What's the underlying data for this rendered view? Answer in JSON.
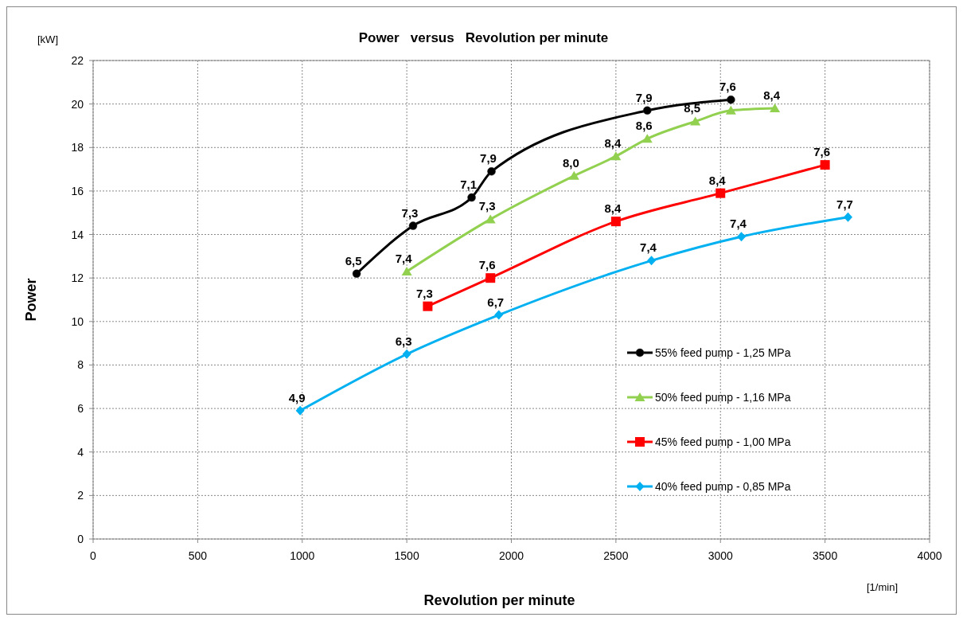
{
  "chart_data": {
    "type": "line",
    "title": "Power   versus   Revolution per minute",
    "xlabel": "Revolution per minute",
    "ylabel": "Power",
    "annotations": [
      "[kW]",
      "[1/min]",
      {
        "text": "6,5",
        "x": 1260,
        "y": 12.2
      },
      {
        "text": "7,3",
        "x": 1530,
        "y": 14.4
      },
      {
        "text": "7,1",
        "x": 1810,
        "y": 15.7
      },
      {
        "text": "7,9",
        "x": 1905,
        "y": 16.9
      },
      {
        "text": "7,9",
        "x": 2650,
        "y": 19.7
      },
      {
        "text": "7,6",
        "x": 3050,
        "y": 20.2
      },
      {
        "text": "7,4",
        "x": 1500,
        "y": 12.3
      },
      {
        "text": "7,3",
        "x": 1900,
        "y": 14.7
      },
      {
        "text": "8,0",
        "x": 2300,
        "y": 16.7
      },
      {
        "text": "8,4",
        "x": 2500,
        "y": 17.6
      },
      {
        "text": "8,6",
        "x": 2650,
        "y": 18.4
      },
      {
        "text": "8,5",
        "x": 2880,
        "y": 19.2
      },
      {
        "text": "8,4",
        "x": 3260,
        "y": 19.8
      },
      {
        "text": "7,3",
        "x": 1600,
        "y": 10.7
      },
      {
        "text": "7,6",
        "x": 1900,
        "y": 12.0
      },
      {
        "text": "8,4",
        "x": 2500,
        "y": 14.6
      },
      {
        "text": "8,4",
        "x": 3000,
        "y": 15.9
      },
      {
        "text": "7,6",
        "x": 3500,
        "y": 17.2
      },
      {
        "text": "4,9",
        "x": 990,
        "y": 5.9
      },
      {
        "text": "6,3",
        "x": 1500,
        "y": 8.5
      },
      {
        "text": "6,7",
        "x": 1940,
        "y": 10.3
      },
      {
        "text": "7,4",
        "x": 2670,
        "y": 12.8
      },
      {
        "text": "7,4",
        "x": 3100,
        "y": 13.9
      },
      {
        "text": "7,7",
        "x": 3610,
        "y": 14.8
      }
    ],
    "xlim": [
      0,
      4000
    ],
    "xticks": [
      0,
      500,
      1000,
      1500,
      2000,
      2500,
      3000,
      3500,
      4000
    ],
    "ylim": [
      0,
      22
    ],
    "yticks": [
      0,
      2,
      4,
      6,
      8,
      10,
      12,
      14,
      16,
      18,
      20,
      22
    ],
    "grid": true,
    "legend": "bottom right",
    "series": [
      {
        "name": "55% feed pump - 1,25 MPa",
        "color": "#000000",
        "marker": "circle",
        "x": [
          1260,
          1530,
          1810,
          1905,
          2650,
          3050
        ],
        "values": [
          12.2,
          14.4,
          15.7,
          16.9,
          19.7,
          20.2
        ]
      },
      {
        "name": "50% feed pump - 1,16 MPa",
        "color": "#92d050",
        "marker": "triangle",
        "x": [
          1500,
          1900,
          2300,
          2500,
          2650,
          2880,
          3050,
          3260
        ],
        "values": [
          12.3,
          14.7,
          16.7,
          17.6,
          18.4,
          19.2,
          19.7,
          19.8
        ]
      },
      {
        "name": "45% feed pump - 1,00 MPa",
        "color": "#ff0000",
        "marker": "square",
        "x": [
          1600,
          1900,
          2500,
          3000,
          3500
        ],
        "values": [
          10.7,
          12.0,
          14.6,
          15.9,
          17.2
        ]
      },
      {
        "name": "40% feed pump - 0,85 MPa",
        "color": "#00b0f0",
        "marker": "diamond",
        "x": [
          990,
          1500,
          1940,
          2670,
          3100,
          3610
        ],
        "values": [
          5.9,
          8.5,
          10.3,
          12.8,
          13.9,
          14.8
        ]
      }
    ]
  }
}
